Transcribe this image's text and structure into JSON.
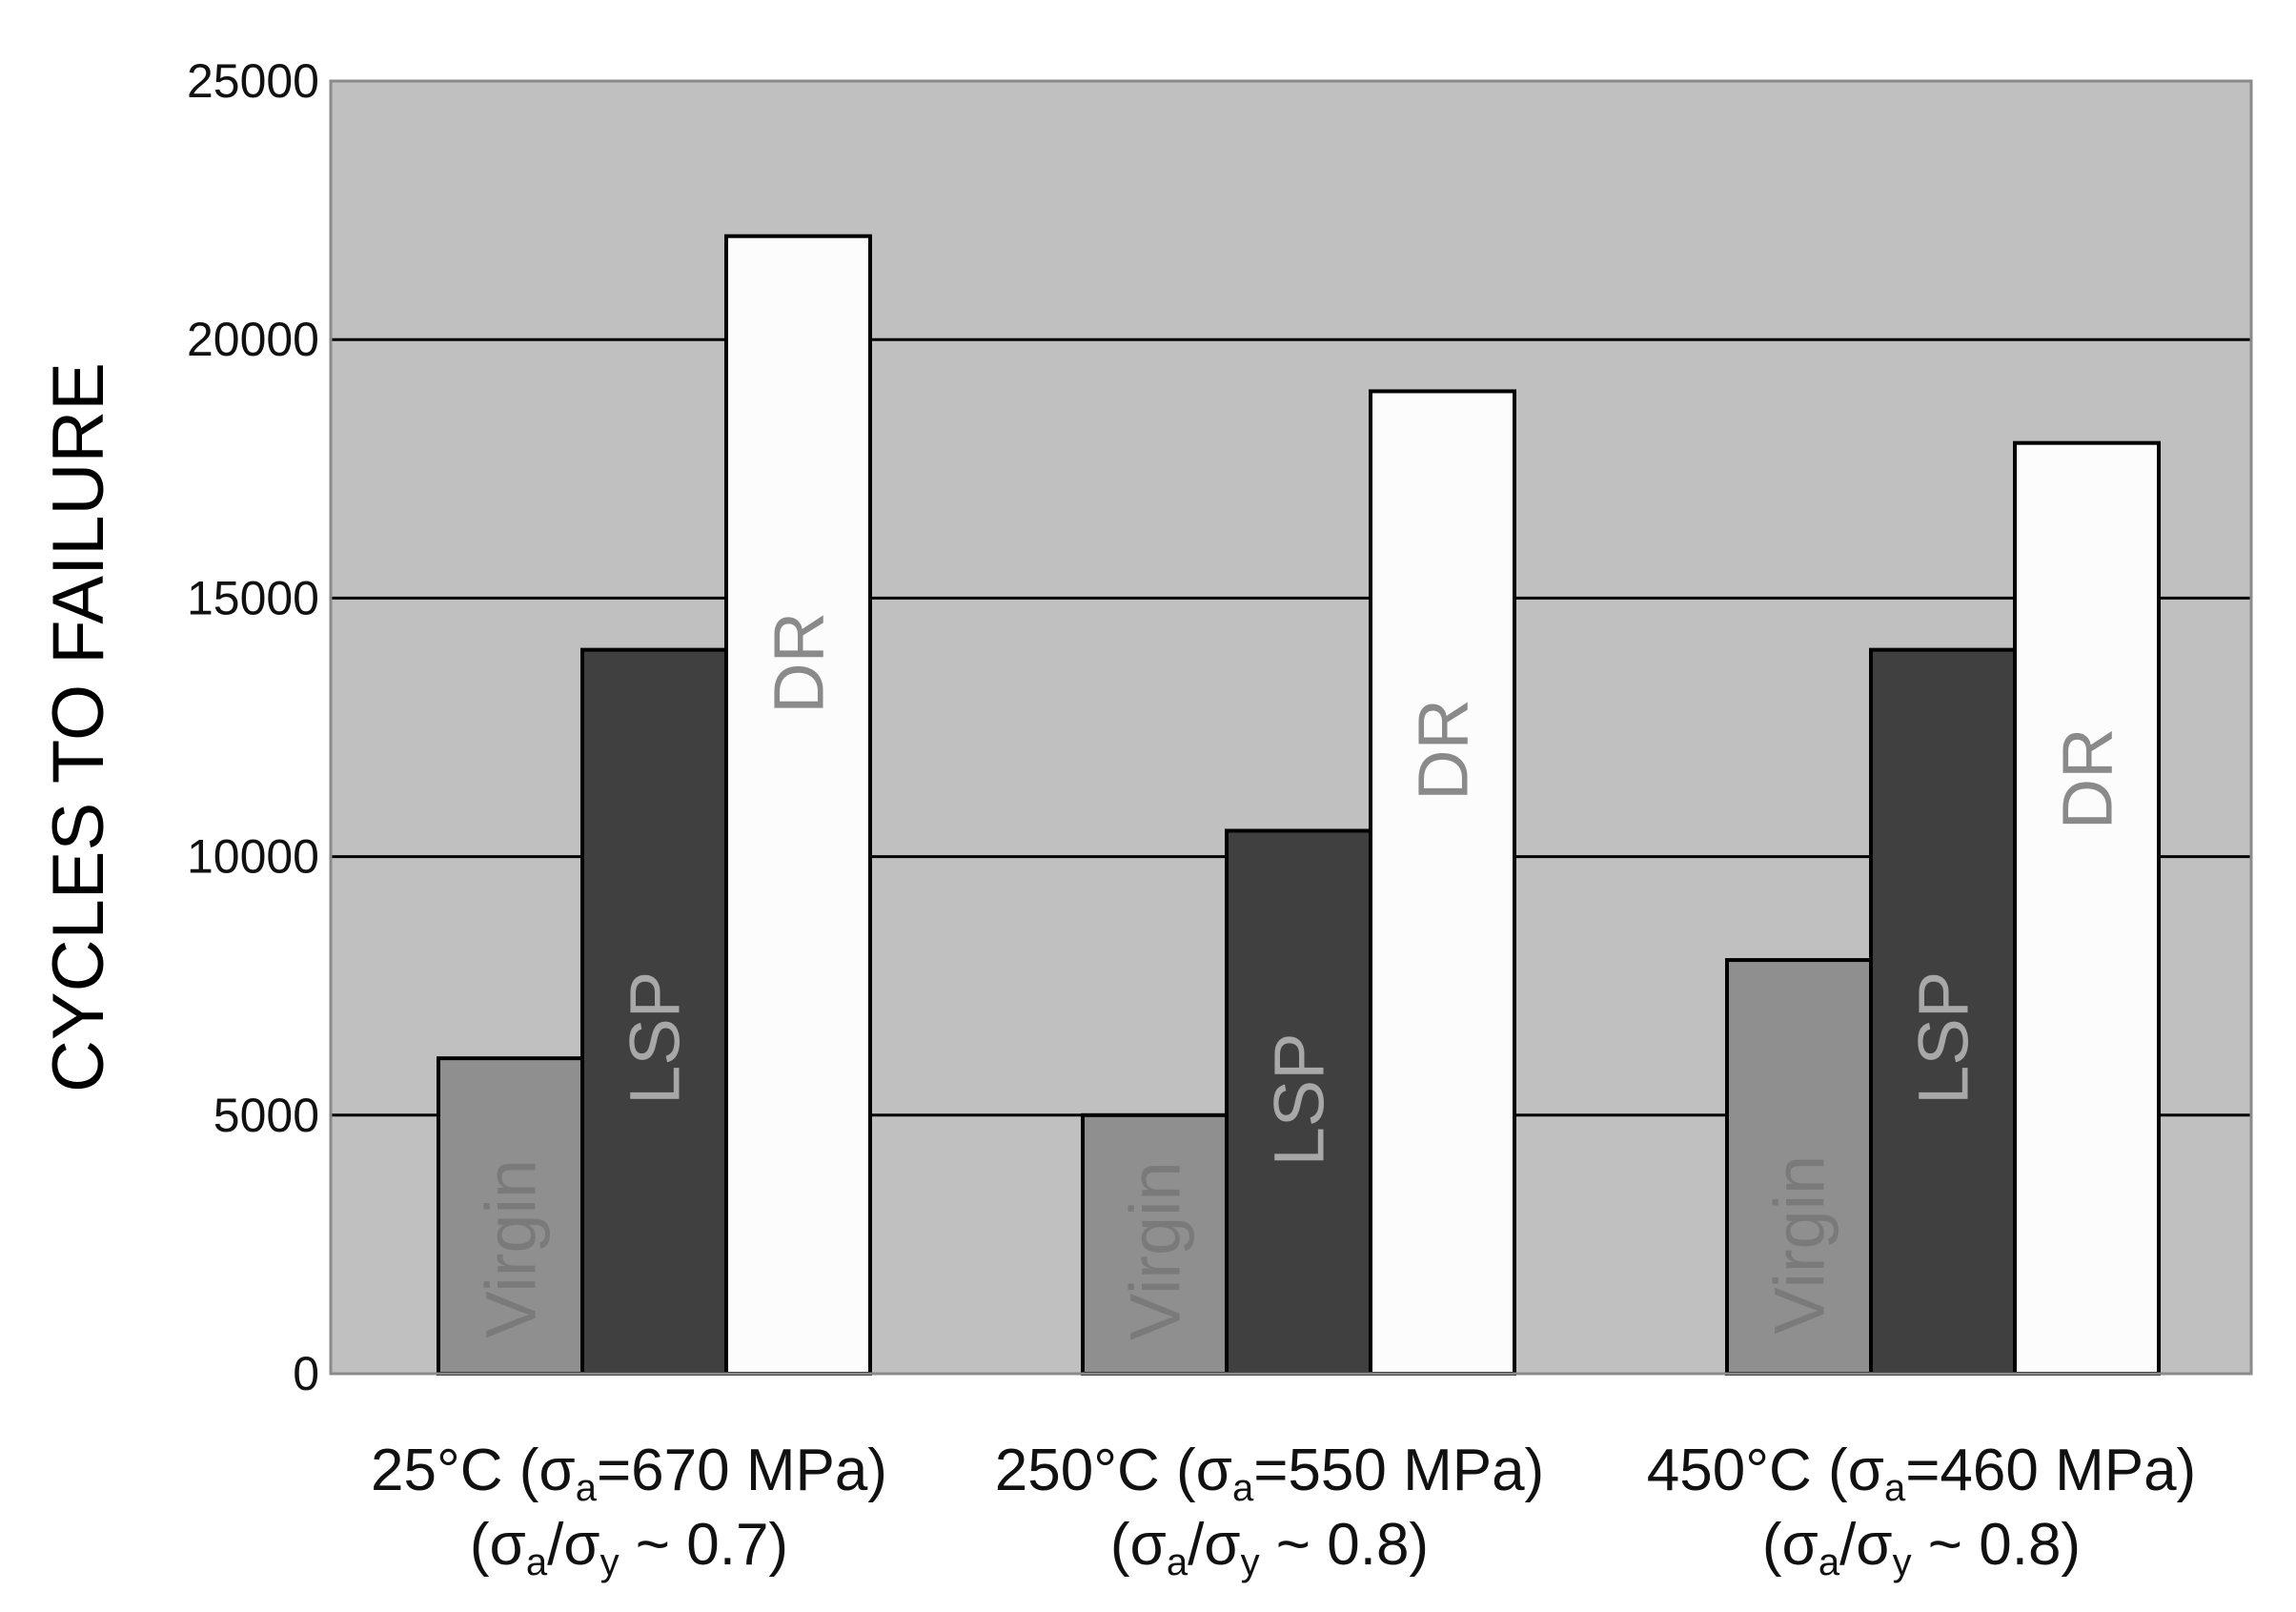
{
  "chart_data": {
    "type": "bar",
    "ylabel": "CYCLES TO FAILURE",
    "ylim": [
      0,
      25000
    ],
    "yticks": [
      "0",
      "5000",
      "10000",
      "15000",
      "20000",
      "25000"
    ],
    "grid": true,
    "plot_background": "#c0c0c0",
    "categories": [
      {
        "line1": [
          {
            "t": "25°C (σ"
          },
          {
            "t": "a",
            "sub": true
          },
          {
            "t": "=670 MPa)"
          }
        ],
        "line2": [
          {
            "t": "(σ"
          },
          {
            "t": "a",
            "sub": true
          },
          {
            "t": "/σ"
          },
          {
            "t": "y",
            "sub": true
          },
          {
            "t": " ~ 0.7)"
          }
        ]
      },
      {
        "line1": [
          {
            "t": "250°C (σ"
          },
          {
            "t": "a",
            "sub": true
          },
          {
            "t": "=550 MPa)"
          }
        ],
        "line2": [
          {
            "t": "(σ"
          },
          {
            "t": "a",
            "sub": true
          },
          {
            "t": "/σ"
          },
          {
            "t": "y",
            "sub": true
          },
          {
            "t": " ~ 0.8)"
          }
        ]
      },
      {
        "line1": [
          {
            "t": "450°C (σ"
          },
          {
            "t": "a",
            "sub": true
          },
          {
            "t": "=460 MPa)"
          }
        ],
        "line2": [
          {
            "t": "(σ"
          },
          {
            "t": "a",
            "sub": true
          },
          {
            "t": "/σ"
          },
          {
            "t": "y",
            "sub": true
          },
          {
            "t": " ~ 0.8)"
          }
        ]
      }
    ],
    "series": [
      {
        "name": "Virgin",
        "color": "#8f8f8f",
        "label_color": "#7a7a7a",
        "values": [
          6100,
          5000,
          8000
        ]
      },
      {
        "name": "LSP",
        "color": "#404040",
        "label_color": "#a8a8a8",
        "values": [
          14000,
          10500,
          14000
        ]
      },
      {
        "name": "DR",
        "color": "#fcfcfc",
        "label_color": "#8a8a8a",
        "values": [
          22000,
          19000,
          18000
        ]
      }
    ]
  }
}
